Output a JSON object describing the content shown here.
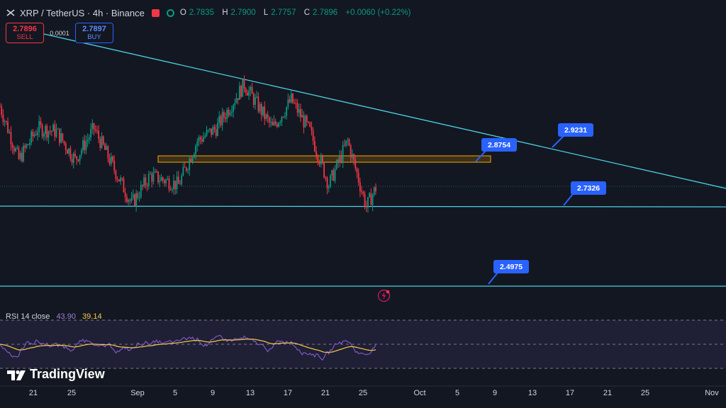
{
  "header": {
    "title": "XRP / TetherUS · 4h · Binance",
    "ohlc": [
      {
        "label": "O",
        "value": "2.7835"
      },
      {
        "label": "H",
        "value": "2.7900"
      },
      {
        "label": "L",
        "value": "2.7757"
      },
      {
        "label": "C",
        "value": "2.7896"
      }
    ],
    "change": "+0.0060 (+0.22%)"
  },
  "trade": {
    "sell_price": "2.7896",
    "sell_label": "SELL",
    "spread": "0.0001",
    "buy_price": "2.7897",
    "buy_label": "BUY"
  },
  "annotations": [
    "2.9231",
    "2.8754",
    "2.7326",
    "2.4975"
  ],
  "rsi": {
    "label": "RSI 14 close",
    "value1": "43.90",
    "value2": "39.14"
  },
  "logo_text": "TradingView",
  "x_axis": [
    "21",
    "25",
    "Sep",
    "5",
    "9",
    "13",
    "17",
    "21",
    "25",
    "Oct",
    "5",
    "9",
    "13",
    "17",
    "21",
    "25",
    "Nov"
  ],
  "colors": {
    "background": "#131722",
    "up": "#089981",
    "down": "#f23645",
    "trendline": "#4dd0e1",
    "zone": "#f7a600",
    "flag": "#2962ff",
    "rsi_line": "#7e57c2",
    "rsi_ma": "#f7c948"
  },
  "chart_data": {
    "type": "candlestick",
    "x_ticks": [
      "21",
      "25",
      "Sep",
      "5",
      "9",
      "13",
      "17",
      "21",
      "25",
      "Oct",
      "5",
      "9",
      "13",
      "17",
      "21",
      "25",
      "Nov"
    ],
    "price_checkpoints": [
      {
        "t": "Aug 18",
        "price": 3.05
      },
      {
        "t": "Aug 20",
        "price": 2.88
      },
      {
        "t": "Aug 22",
        "price": 2.98
      },
      {
        "t": "Aug 24",
        "price": 2.97
      },
      {
        "t": "Aug 26",
        "price": 2.88
      },
      {
        "t": "Aug 28",
        "price": 2.98
      },
      {
        "t": "Sep 1",
        "price": 2.74
      },
      {
        "t": "Sep 3",
        "price": 2.83
      },
      {
        "t": "Sep 6",
        "price": 2.8
      },
      {
        "t": "Sep 8",
        "price": 2.94
      },
      {
        "t": "Sep 10",
        "price": 2.98
      },
      {
        "t": "Sep 13",
        "price": 3.12
      },
      {
        "t": "Sep 16",
        "price": 2.98
      },
      {
        "t": "Sep 18",
        "price": 3.07
      },
      {
        "t": "Sep 20",
        "price": 2.97
      },
      {
        "t": "Sep 22",
        "price": 2.8
      },
      {
        "t": "Sep 24",
        "price": 2.94
      },
      {
        "t": "Sep 26",
        "price": 2.73
      },
      {
        "t": "Sep 27",
        "price": 2.79
      }
    ],
    "levels": {
      "resistance_zone": [
        2.8754,
        2.85
      ],
      "support": 2.7326,
      "lower_support": 2.4975,
      "trendline_points": [
        2.9231,
        2.8754
      ]
    },
    "rsi": {
      "length": 14,
      "value": 43.9,
      "ma": 39.14,
      "bands": [
        30,
        50,
        70
      ]
    }
  }
}
